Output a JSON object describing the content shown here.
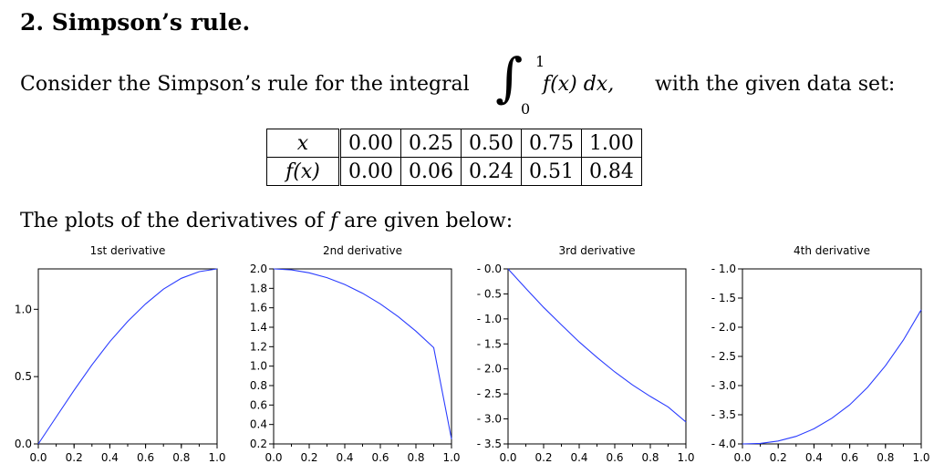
{
  "section": {
    "title": "2. Simpson’s rule."
  },
  "intro": {
    "before": "Consider the Simpson’s rule for the integral",
    "integral_upper": "1",
    "integral_lower": "0",
    "integrand": "f(x) dx,",
    "after": "with the given data set:"
  },
  "table": {
    "row_x_label": "x",
    "row_f_label": "f(x)",
    "x": [
      "0.00",
      "0.25",
      "0.50",
      "0.75",
      "1.00"
    ],
    "f": [
      "0.00",
      "0.06",
      "0.24",
      "0.51",
      "0.84"
    ]
  },
  "plots_caption": {
    "before": "The plots of the derivatives of",
    "var": "f",
    "after": "are given below:"
  },
  "colors": {
    "curve": "#2a3cff"
  },
  "chart_data": [
    {
      "type": "line",
      "title": "1st derivative",
      "x": [
        0,
        0.1,
        0.2,
        0.3,
        0.4,
        0.5,
        0.6,
        0.7,
        0.8,
        0.9,
        1.0
      ],
      "series": [
        {
          "values": [
            0.0,
            0.2,
            0.398,
            0.587,
            0.76,
            0.91,
            1.04,
            1.15,
            1.23,
            1.28,
            1.3
          ]
        }
      ],
      "xlim": [
        0,
        1
      ],
      "ylim": [
        0,
        1.3
      ],
      "xticks": [
        "0.0",
        "0.2",
        "0.4",
        "0.6",
        "0.8",
        "1.0"
      ],
      "yticks": [
        {
          "v": 0,
          "label": "0.0"
        },
        {
          "v": 0.5,
          "label": "0.5"
        },
        {
          "v": 1.0,
          "label": "1.0"
        }
      ]
    },
    {
      "type": "line",
      "title": "2nd derivative",
      "x": [
        0,
        0.1,
        0.2,
        0.3,
        0.4,
        0.5,
        0.6,
        0.7,
        0.8,
        0.9,
        1.0
      ],
      "series": [
        {
          "values": [
            2.0,
            1.99,
            1.96,
            1.91,
            1.84,
            1.75,
            1.64,
            1.51,
            1.36,
            1.19,
            0.25
          ]
        }
      ],
      "xlim": [
        0,
        1
      ],
      "ylim": [
        0.2,
        2.0
      ],
      "xticks": [
        "0.0",
        "0.2",
        "0.4",
        "0.6",
        "0.8",
        "1.0"
      ],
      "yticks": [
        {
          "v": 0.2,
          "label": "0.2"
        },
        {
          "v": 0.4,
          "label": "0.4"
        },
        {
          "v": 0.6,
          "label": "0.6"
        },
        {
          "v": 0.8,
          "label": "0.8"
        },
        {
          "v": 1.0,
          "label": "1.0"
        },
        {
          "v": 1.2,
          "label": "1.2"
        },
        {
          "v": 1.4,
          "label": "1.4"
        },
        {
          "v": 1.6,
          "label": "1.6"
        },
        {
          "v": 1.8,
          "label": "1.8"
        },
        {
          "v": 2.0,
          "label": "2.0"
        }
      ]
    },
    {
      "type": "line",
      "title": "3rd derivative",
      "x": [
        0,
        0.1,
        0.2,
        0.3,
        0.4,
        0.5,
        0.6,
        0.7,
        0.8,
        0.9,
        1.0
      ],
      "series": [
        {
          "values": [
            0.0,
            -0.39,
            -0.77,
            -1.12,
            -1.46,
            -1.77,
            -2.06,
            -2.32,
            -2.55,
            -2.76,
            -3.06
          ]
        }
      ],
      "xlim": [
        0,
        1
      ],
      "ylim": [
        -3.5,
        0
      ],
      "xticks": [
        "0.0",
        "0.2",
        "0.4",
        "0.6",
        "0.8",
        "1.0"
      ],
      "yticks": [
        {
          "v": 0,
          "label": "- 0.0"
        },
        {
          "v": -0.5,
          "label": "- 0.5"
        },
        {
          "v": -1.0,
          "label": "- 1.0"
        },
        {
          "v": -1.5,
          "label": "- 1.5"
        },
        {
          "v": -2.0,
          "label": "- 2.0"
        },
        {
          "v": -2.5,
          "label": "- 2.5"
        },
        {
          "v": -3.0,
          "label": "- 3.0"
        },
        {
          "v": -3.5,
          "label": "- 3.5"
        }
      ]
    },
    {
      "type": "line",
      "title": "4th derivative",
      "x": [
        0,
        0.1,
        0.2,
        0.3,
        0.4,
        0.5,
        0.6,
        0.7,
        0.8,
        0.9,
        1.0
      ],
      "series": [
        {
          "values": [
            -4.0,
            -3.99,
            -3.95,
            -3.87,
            -3.74,
            -3.56,
            -3.33,
            -3.03,
            -2.66,
            -2.22,
            -1.7
          ]
        }
      ],
      "xlim": [
        0,
        1
      ],
      "ylim": [
        -4.0,
        -1.0
      ],
      "xticks": [
        "0.0",
        "0.2",
        "0.4",
        "0.6",
        "0.8",
        "1.0"
      ],
      "yticks": [
        {
          "v": -1.0,
          "label": "- 1.0"
        },
        {
          "v": -1.5,
          "label": "- 1.5"
        },
        {
          "v": -2.0,
          "label": "- 2.0"
        },
        {
          "v": -2.5,
          "label": "- 2.5"
        },
        {
          "v": -3.0,
          "label": "- 3.0"
        },
        {
          "v": -3.5,
          "label": "- 3.5"
        },
        {
          "v": -4.0,
          "label": "- 4.0"
        }
      ]
    }
  ]
}
